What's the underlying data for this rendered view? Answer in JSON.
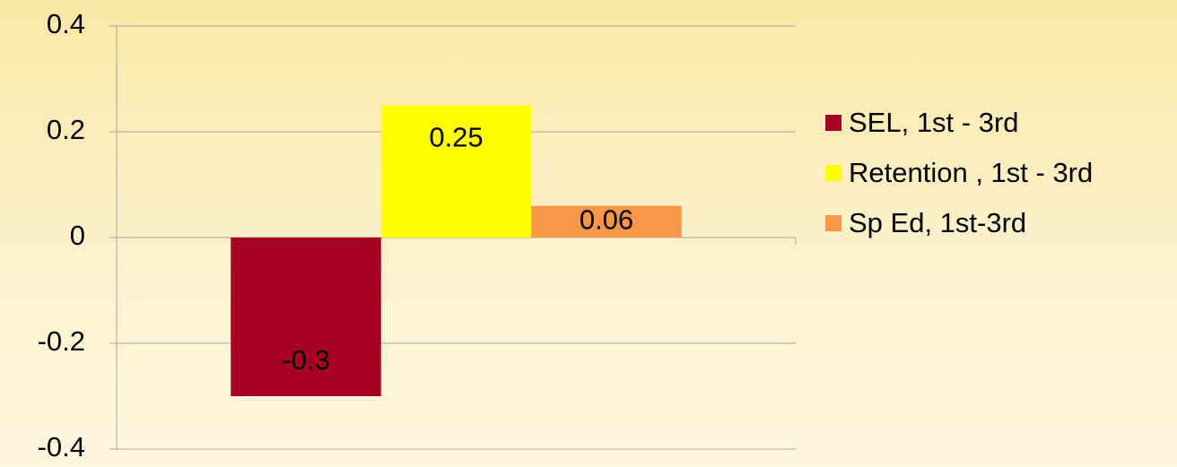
{
  "chart_data": {
    "type": "bar",
    "categories": [
      null
    ],
    "series": [
      {
        "name": "SEL, 1st - 3rd",
        "color": "#a50021",
        "values": [
          -0.3
        ]
      },
      {
        "name": "Retention , 1st - 3rd",
        "color": "#ffff00",
        "values": [
          0.25
        ]
      },
      {
        "name": "Sp Ed, 1st-3rd",
        "color": "#f79646",
        "values": [
          0.06
        ]
      }
    ],
    "ylim": [
      -0.4,
      0.4
    ],
    "yticks": [
      -0.4,
      -0.2,
      0,
      0.2,
      0.4
    ],
    "grid": true,
    "legend": "right"
  }
}
